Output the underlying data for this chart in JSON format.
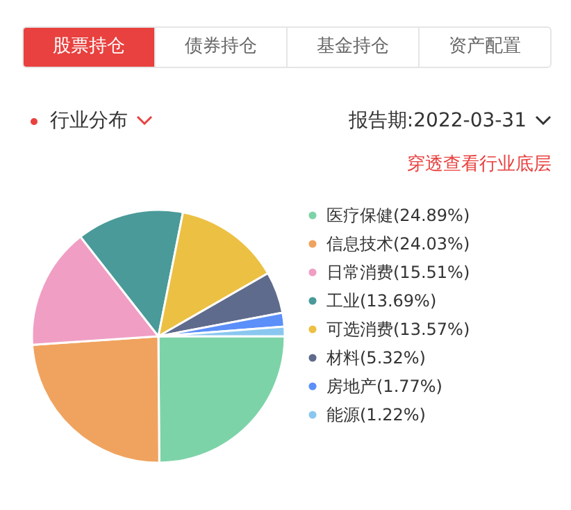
{
  "chart_data": {
    "type": "pie",
    "title": "行业分布",
    "subtitle": "报告期:2022-03-31",
    "annotations": [
      "股票持仓",
      "债券持仓",
      "基金持仓",
      "资产配置",
      "穿透查看行业底层"
    ],
    "categories": [
      "医疗保健(24.89%)",
      "信息技术(24.03%)",
      "日常消费(15.51%)",
      "工业(13.69%)",
      "可选消费(13.57%)",
      "材料(5.32%)",
      "房地产(1.77%)",
      "能源(1.22%)"
    ],
    "values": [
      24.89,
      24.03,
      15.51,
      13.69,
      13.57,
      5.32,
      1.77,
      1.22
    ],
    "colors": [
      "#7dd3a8",
      "#f0a35e",
      "#f09ec4",
      "#4a9a9a",
      "#ecc043",
      "#5f6b8c",
      "#5b8ff9",
      "#8ac7f0"
    ],
    "legend": "right"
  }
}
